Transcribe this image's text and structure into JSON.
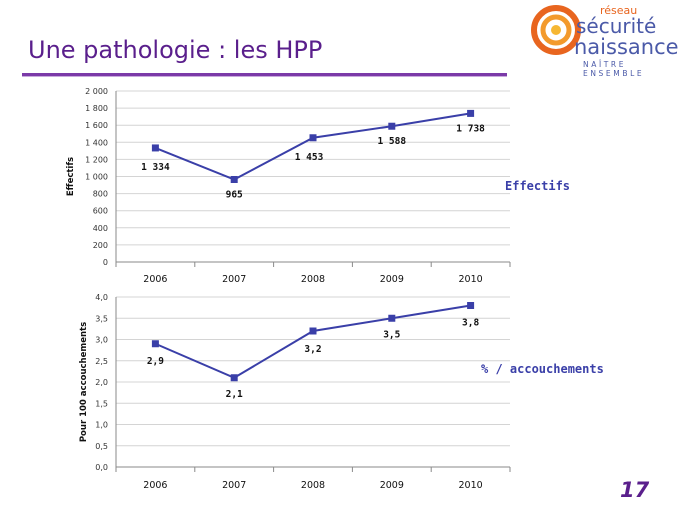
{
  "slide": {
    "title": "Une pathologie : les HPP",
    "page_number": "17"
  },
  "logo": {
    "line1": "réseau",
    "line2": "sécurité",
    "line3": "naissance",
    "subtitle": "NAÎTRE ENSEMBLE"
  },
  "colors": {
    "title": "#5a1f8c",
    "rule": "#7b3aa8",
    "series": "#3a3fa8",
    "logo_orange": "#e8651f",
    "logo_blue": "#4b5aa8"
  },
  "chart_labels": {
    "effectifs": "Effectifs",
    "pourcentage": "% / accouchements"
  },
  "chart_data": [
    {
      "type": "line",
      "categories": [
        "2006",
        "2007",
        "2008",
        "2009",
        "2010"
      ],
      "values": [
        1334,
        965,
        1453,
        1588,
        1738
      ],
      "data_labels": [
        "1 334",
        "965",
        "1 453",
        "1 588",
        "1 738"
      ],
      "ylabel": "Effectifs",
      "ylim": [
        0,
        2000
      ],
      "yticks": [
        0,
        200,
        400,
        600,
        800,
        1000,
        1200,
        1400,
        1600,
        1800,
        2000
      ],
      "ytick_labels": [
        "0",
        "200",
        "400",
        "600",
        "800",
        "1 000",
        "1 200",
        "1 400",
        "1 600",
        "1 800",
        "2 000"
      ],
      "grid": true
    },
    {
      "type": "line",
      "categories": [
        "2006",
        "2007",
        "2008",
        "2009",
        "2010"
      ],
      "values": [
        2.9,
        2.1,
        3.2,
        3.5,
        3.8
      ],
      "data_labels": [
        "2,9",
        "2,1",
        "3,2",
        "3,5",
        "3,8"
      ],
      "ylabel": "Pour 100 accouchements",
      "ylim": [
        0,
        4
      ],
      "yticks": [
        0,
        0.5,
        1,
        1.5,
        2,
        2.5,
        3,
        3.5,
        4
      ],
      "ytick_labels": [
        "0,0",
        "0,5",
        "1,0",
        "1,5",
        "2,0",
        "2,5",
        "3,0",
        "3,5",
        "4,0"
      ],
      "grid": true
    }
  ]
}
